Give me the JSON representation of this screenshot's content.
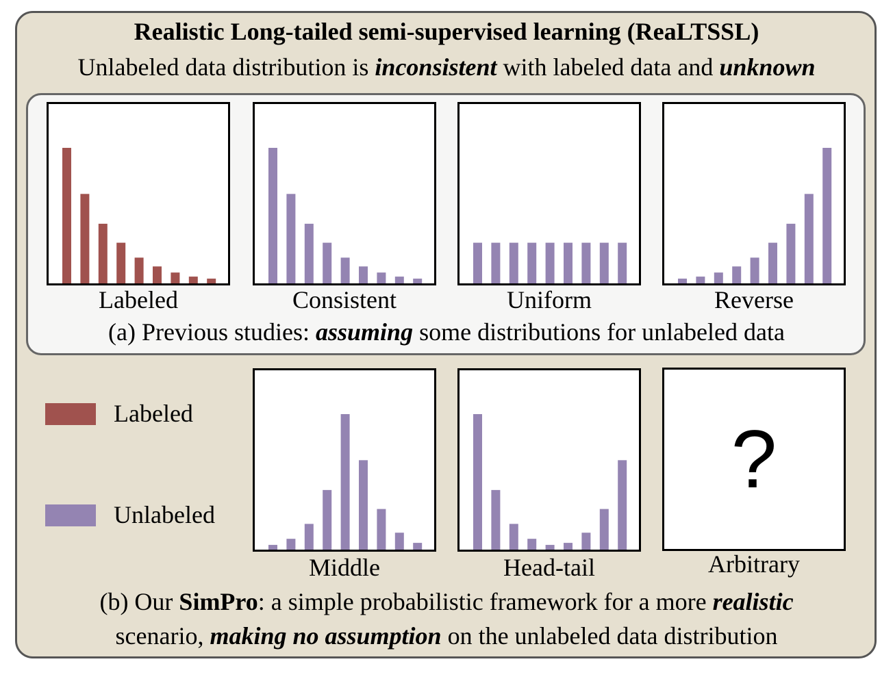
{
  "header": {
    "title": "Realistic Long-tailed semi-supervised learning (ReaLTSSL)",
    "subtitle_parts": [
      "Unlabeled data distribution is ",
      "inconsistent",
      " with labeled data and ",
      "unknown"
    ]
  },
  "caption_a": {
    "parts": [
      "(a) Previous studies: ",
      "assuming",
      " some distributions for unlabeled data"
    ]
  },
  "caption_b": {
    "line1_parts": [
      "(b) Our ",
      "SimPro",
      ": a simple probabilistic framework for a more ",
      "realistic"
    ],
    "line2_parts": [
      "scenario, ",
      "making no assumption",
      " on the unlabeled data distribution"
    ]
  },
  "legend": {
    "labeled": "Labeled",
    "unlabeled": "Unlabeled"
  },
  "colors": {
    "labeled": "#a0524e",
    "unlabeled": "#9484b2"
  },
  "arbitrary": {
    "label": "Arbitrary",
    "symbol": "?"
  },
  "chart_data": [
    {
      "type": "bar",
      "title": "Labeled",
      "series": [
        {
          "name": "Labeled",
          "values": [
            100,
            66,
            44,
            30,
            19,
            12.5,
            8,
            5,
            3.5
          ]
        }
      ],
      "ylim": [
        0,
        100
      ]
    },
    {
      "type": "bar",
      "title": "Consistent",
      "series": [
        {
          "name": "Unlabeled",
          "values": [
            100,
            66,
            44,
            30,
            19,
            12.5,
            8,
            5,
            3.5
          ]
        }
      ],
      "ylim": [
        0,
        100
      ]
    },
    {
      "type": "bar",
      "title": "Uniform",
      "series": [
        {
          "name": "Unlabeled",
          "values": [
            30,
            30,
            30,
            30,
            30,
            30,
            30,
            30,
            30
          ]
        }
      ],
      "ylim": [
        0,
        100
      ]
    },
    {
      "type": "bar",
      "title": "Reverse",
      "series": [
        {
          "name": "Unlabeled",
          "values": [
            3.5,
            5,
            8,
            12.5,
            19,
            30,
            44,
            66,
            100
          ]
        }
      ],
      "ylim": [
        0,
        100
      ]
    },
    {
      "type": "bar",
      "title": "Middle",
      "series": [
        {
          "name": "Unlabeled",
          "values": [
            3.5,
            8,
            19,
            44,
            100,
            66,
            30,
            12.5,
            5
          ]
        }
      ],
      "ylim": [
        0,
        100
      ]
    },
    {
      "type": "bar",
      "title": "Head-tail",
      "series": [
        {
          "name": "Unlabeled",
          "values": [
            100,
            44,
            19,
            8,
            3.5,
            5,
            12.5,
            30,
            66
          ]
        }
      ],
      "ylim": [
        0,
        100
      ]
    }
  ]
}
